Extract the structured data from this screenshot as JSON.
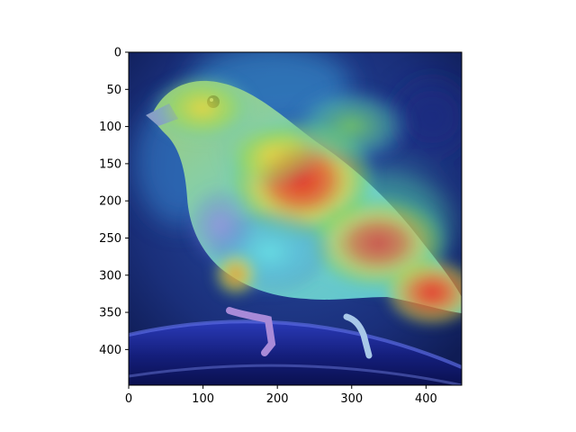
{
  "figure": {
    "description_visible": "Heatmap (saliency) overlay on a photo of a small finch-like bird perched on a dark curved rail",
    "x_ticks": [
      0,
      100,
      200,
      300,
      400
    ],
    "y_ticks": [
      0,
      50,
      100,
      150,
      200,
      250,
      300,
      350,
      400
    ],
    "x_range": [
      0,
      448
    ],
    "y_range": [
      0,
      448
    ],
    "colormap": "jet",
    "colors": {
      "background_dark": "#1a2a6a",
      "hot_red": "#e8322a",
      "warm_yellow": "#e8d23a",
      "mid_green": "#7ad65a",
      "cool_cyan": "#5ad2e0"
    }
  }
}
